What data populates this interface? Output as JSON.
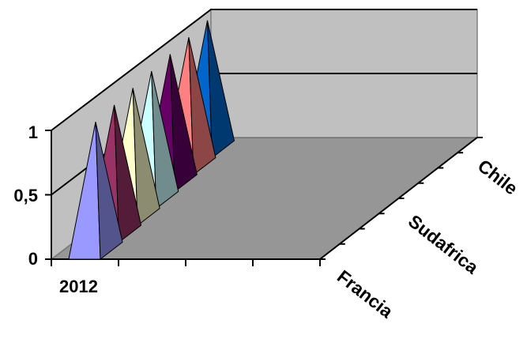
{
  "chart_data": {
    "type": "bar",
    "variant": "3d-pyramid",
    "categories": [
      "2012"
    ],
    "series": [
      {
        "name": "Francia",
        "values": [
          1
        ],
        "color": "#9999ff"
      },
      {
        "name": "",
        "values": [
          1
        ],
        "color": "#993366"
      },
      {
        "name": "",
        "values": [
          1
        ],
        "color": "#ffffcc"
      },
      {
        "name": "",
        "values": [
          1
        ],
        "color": "#ccffff"
      },
      {
        "name": "",
        "values": [
          1
        ],
        "color": "#660066"
      },
      {
        "name": "Sudafrica",
        "values": [
          1
        ],
        "color": "#ff8080"
      },
      {
        "name": "Chile",
        "values": [
          1
        ],
        "color": "#0066cc"
      }
    ],
    "yticks": [
      "0",
      "0,5",
      "1"
    ],
    "ylim": [
      0,
      1
    ],
    "depth_labels": [
      "Francia",
      "Sudafrica",
      "Chile"
    ],
    "title": "",
    "xlabel": "",
    "ylabel": "",
    "grid": true,
    "legend": "none"
  }
}
